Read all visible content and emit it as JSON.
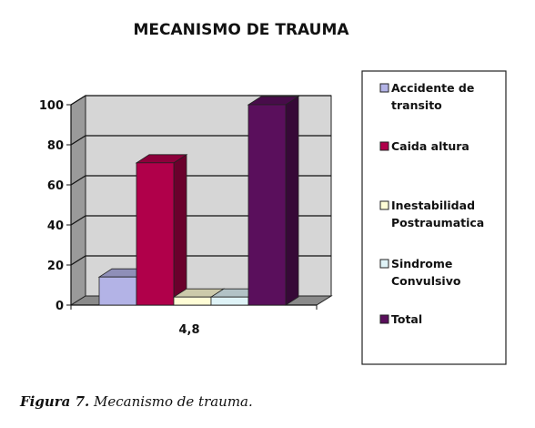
{
  "chart_data": {
    "type": "bar",
    "title": "MECANISMO  DE TRAUMA",
    "categories": [
      "4,8"
    ],
    "series": [
      {
        "name": "Accidente de transito",
        "values": [
          14
        ],
        "color": "#b3b3e6",
        "legend_lines": [
          "Accidente de",
          "transito"
        ]
      },
      {
        "name": "Caida altura",
        "values": [
          71
        ],
        "color": "#b0004a",
        "legend_lines": [
          "Caida altura"
        ]
      },
      {
        "name": "Inestabilidad Postraumatica",
        "values": [
          4
        ],
        "color": "#fffdd6",
        "legend_lines": [
          "Inestabilidad",
          "Postraumatica"
        ]
      },
      {
        "name": "Sindrome Convulsivo",
        "values": [
          4
        ],
        "color": "#dff3f7",
        "legend_lines": [
          "Sindrome",
          "Convulsivo"
        ]
      },
      {
        "name": "Total",
        "values": [
          100
        ],
        "color": "#5a0f5c",
        "legend_lines": [
          "Total"
        ]
      }
    ],
    "ylim": [
      0,
      100
    ],
    "yticks": [
      "0",
      "20",
      "40",
      "60",
      "80",
      "100"
    ],
    "grid": true,
    "legend_position": "right"
  },
  "caption": {
    "label": "Figura 7.",
    "text": "Mecanismo de trauma."
  }
}
